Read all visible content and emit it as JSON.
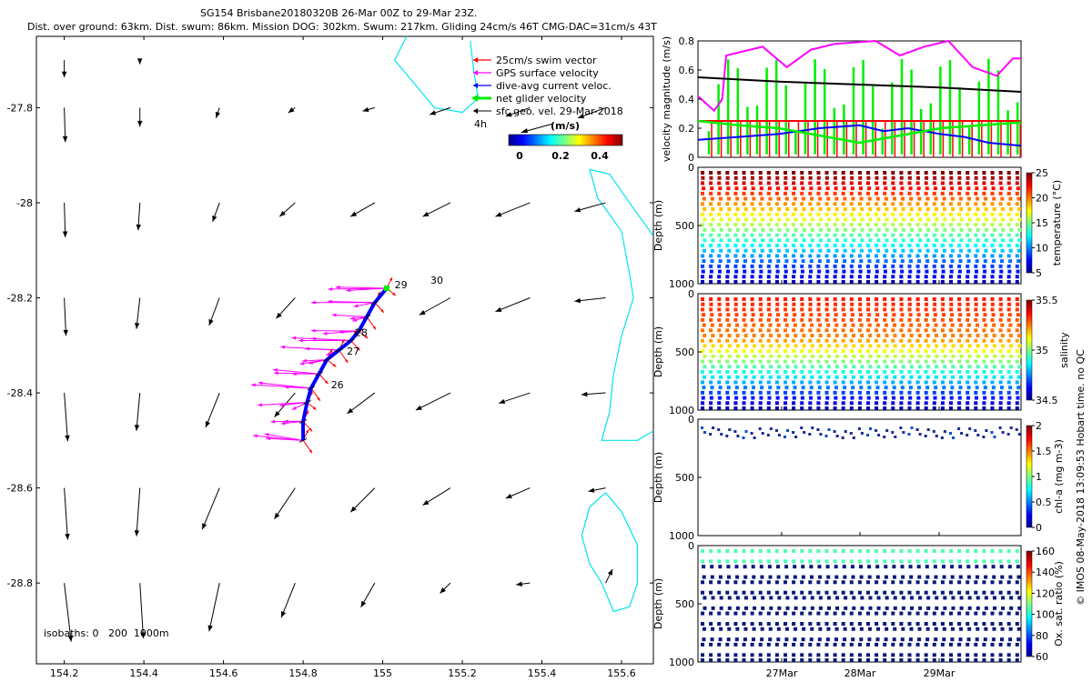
{
  "header": {
    "title": "SG154 Brisbane20180320B 26-Mar 00Z to 29-Mar 23Z.",
    "subtitle": "Dist. over ground: 63km. Dist. swum: 86km. Mission DOG: 302km. Swum: 217km. Gliding 24cm/s 46T CMG-DAC=31cm/s 43T"
  },
  "credit": "© IMOS 08-May-2018 13:09:53 Hobart time. no QC",
  "colors": {
    "swim": "#ff0000",
    "gps": "#ff00ff",
    "dac": "#0000ff",
    "net": "#00ee00",
    "geo": "#000000",
    "coast": "#00e5ee"
  },
  "chart_data": [
    {
      "type": "map",
      "xlim": [
        154.13,
        155.68
      ],
      "ylim": [
        -28.97,
        -27.65
      ],
      "xticks": [
        154.2,
        154.4,
        154.6,
        154.8,
        155,
        155.2,
        155.4,
        155.6
      ],
      "xtick_labels": [
        "154.2",
        "154.4",
        "154.6",
        "154.8",
        "155",
        "155.2",
        "155.4",
        "155.6"
      ],
      "yticks": [
        -27.8,
        -28,
        -28.2,
        -28.4,
        -28.6,
        -28.8
      ],
      "ytick_labels": [
        "-27.8",
        "-28",
        "-28.2",
        "-28.4",
        "-28.6",
        "-28.8"
      ],
      "legend": {
        "position": "top-right",
        "entries": [
          "25cm/s swim vector",
          "GPS surface velocity",
          "dive-avg current veloc.",
          "net glider velocity",
          "sfc geo. vel. 29-Mar-2018"
        ],
        "scale_label": "4h",
        "colorbar_title": "(m/s)",
        "colorbar_ticks": [
          0,
          0.2,
          0.4
        ],
        "colorbar_tick_labels": [
          "0",
          "0.2",
          "0.4"
        ]
      },
      "isobaths_label": "isobaths: 0   200  1000m",
      "track_labels": [
        {
          "text": "30",
          "lon": 155.12,
          "lat": -28.17
        },
        {
          "text": "29",
          "lon": 155.03,
          "lat": -28.18
        },
        {
          "text": "28",
          "lon": 154.93,
          "lat": -28.28
        },
        {
          "text": "27",
          "lon": 154.91,
          "lat": -28.32
        },
        {
          "text": "26",
          "lon": 154.87,
          "lat": -28.39
        }
      ],
      "geo_vectors": [
        {
          "lon": 154.2,
          "lat": -27.7,
          "u": 0.0,
          "v": -0.5
        },
        {
          "lon": 154.39,
          "lat": -27.7,
          "u": 0.0,
          "v": -0.12
        },
        {
          "lon": 154.2,
          "lat": -27.8,
          "u": 0.03,
          "v": -1.0
        },
        {
          "lon": 154.39,
          "lat": -27.8,
          "u": 0.0,
          "v": -0.55
        },
        {
          "lon": 154.59,
          "lat": -27.8,
          "u": -0.1,
          "v": -0.3
        },
        {
          "lon": 154.78,
          "lat": -27.8,
          "u": -0.2,
          "v": -0.15
        },
        {
          "lon": 154.98,
          "lat": -27.8,
          "u": -0.35,
          "v": -0.1
        },
        {
          "lon": 155.17,
          "lat": -27.8,
          "u": -0.6,
          "v": -0.2
        },
        {
          "lon": 155.37,
          "lat": -27.8,
          "u": -0.7,
          "v": -0.25
        },
        {
          "lon": 155.56,
          "lat": -27.8,
          "u": -0.8,
          "v": -0.3
        },
        {
          "lon": 154.2,
          "lat": -28.0,
          "u": 0.03,
          "v": -1.0
        },
        {
          "lon": 154.39,
          "lat": -28.0,
          "u": -0.05,
          "v": -0.8
        },
        {
          "lon": 154.59,
          "lat": -28.0,
          "u": -0.2,
          "v": -0.55
        },
        {
          "lon": 154.78,
          "lat": -28.0,
          "u": -0.45,
          "v": -0.4
        },
        {
          "lon": 154.98,
          "lat": -28.0,
          "u": -0.7,
          "v": -0.4
        },
        {
          "lon": 155.17,
          "lat": -28.0,
          "u": -0.8,
          "v": -0.4
        },
        {
          "lon": 155.37,
          "lat": -28.0,
          "u": -1.0,
          "v": -0.4
        },
        {
          "lon": 155.56,
          "lat": -28.0,
          "u": -0.9,
          "v": -0.25
        },
        {
          "lon": 154.2,
          "lat": -28.2,
          "u": 0.05,
          "v": -1.1
        },
        {
          "lon": 154.39,
          "lat": -28.2,
          "u": -0.1,
          "v": -0.9
        },
        {
          "lon": 154.59,
          "lat": -28.2,
          "u": -0.3,
          "v": -0.8
        },
        {
          "lon": 154.78,
          "lat": -28.2,
          "u": -0.55,
          "v": -0.6
        },
        {
          "lon": 155.17,
          "lat": -28.2,
          "u": -0.9,
          "v": -0.5
        },
        {
          "lon": 155.37,
          "lat": -28.2,
          "u": -1.0,
          "v": -0.4
        },
        {
          "lon": 155.56,
          "lat": -28.2,
          "u": -0.9,
          "v": -0.1
        },
        {
          "lon": 154.2,
          "lat": -28.4,
          "u": 0.1,
          "v": -1.4
        },
        {
          "lon": 154.39,
          "lat": -28.4,
          "u": -0.1,
          "v": -1.1
        },
        {
          "lon": 154.59,
          "lat": -28.4,
          "u": -0.4,
          "v": -1.0
        },
        {
          "lon": 154.78,
          "lat": -28.4,
          "u": -0.6,
          "v": -0.7
        },
        {
          "lon": 154.98,
          "lat": -28.4,
          "u": -0.8,
          "v": -0.6
        },
        {
          "lon": 155.17,
          "lat": -28.4,
          "u": -1.0,
          "v": -0.5
        },
        {
          "lon": 155.37,
          "lat": -28.4,
          "u": -0.9,
          "v": -0.3
        },
        {
          "lon": 155.56,
          "lat": -28.4,
          "u": -0.7,
          "v": -0.05
        },
        {
          "lon": 154.2,
          "lat": -28.6,
          "u": 0.1,
          "v": -1.5
        },
        {
          "lon": 154.39,
          "lat": -28.6,
          "u": -0.1,
          "v": -1.4
        },
        {
          "lon": 154.59,
          "lat": -28.6,
          "u": -0.5,
          "v": -1.2
        },
        {
          "lon": 154.78,
          "lat": -28.6,
          "u": -0.6,
          "v": -0.9
        },
        {
          "lon": 154.98,
          "lat": -28.6,
          "u": -0.7,
          "v": -0.7
        },
        {
          "lon": 155.17,
          "lat": -28.6,
          "u": -0.8,
          "v": -0.5
        },
        {
          "lon": 155.37,
          "lat": -28.6,
          "u": -0.7,
          "v": -0.3
        },
        {
          "lon": 155.56,
          "lat": -28.6,
          "u": -0.5,
          "v": -0.1
        },
        {
          "lon": 154.2,
          "lat": -28.8,
          "u": 0.2,
          "v": -1.7
        },
        {
          "lon": 154.39,
          "lat": -28.8,
          "u": 0.1,
          "v": -1.6
        },
        {
          "lon": 154.59,
          "lat": -28.8,
          "u": -0.3,
          "v": -1.4
        },
        {
          "lon": 154.78,
          "lat": -28.8,
          "u": -0.4,
          "v": -1.0
        },
        {
          "lon": 154.98,
          "lat": -28.8,
          "u": -0.4,
          "v": -0.7
        },
        {
          "lon": 155.17,
          "lat": -28.8,
          "u": -0.3,
          "v": -0.3
        },
        {
          "lon": 155.37,
          "lat": -28.8,
          "u": -0.4,
          "v": -0.05
        },
        {
          "lon": 155.56,
          "lat": -28.8,
          "u": 0.2,
          "v": 0.4
        }
      ],
      "track": [
        [
          155.01,
          -28.18
        ],
        [
          154.98,
          -28.21
        ],
        [
          154.96,
          -28.24
        ],
        [
          154.94,
          -28.27
        ],
        [
          154.92,
          -28.29
        ],
        [
          154.89,
          -28.31
        ],
        [
          154.86,
          -28.33
        ],
        [
          154.84,
          -28.36
        ],
        [
          154.82,
          -28.39
        ],
        [
          154.81,
          -28.42
        ],
        [
          154.8,
          -28.46
        ],
        [
          154.8,
          -28.5
        ]
      ],
      "coastlines": [
        [
          [
            155.06,
            -27.65
          ],
          [
            155.03,
            -27.7
          ],
          [
            155.08,
            -27.75
          ],
          [
            155.13,
            -27.8
          ],
          [
            155.2,
            -27.81
          ],
          [
            155.24,
            -27.78
          ],
          [
            155.23,
            -27.73
          ],
          [
            155.22,
            -27.66
          ]
        ],
        [
          [
            155.68,
            -28.07
          ],
          [
            155.62,
            -28.0
          ],
          [
            155.57,
            -27.94
          ],
          [
            155.52,
            -27.93
          ],
          [
            155.54,
            -27.99
          ],
          [
            155.6,
            -28.06
          ],
          [
            155.62,
            -28.15
          ],
          [
            155.63,
            -28.2
          ],
          [
            155.6,
            -28.28
          ],
          [
            155.58,
            -28.36
          ],
          [
            155.57,
            -28.44
          ],
          [
            155.55,
            -28.5
          ],
          [
            155.64,
            -28.5
          ],
          [
            155.68,
            -28.48
          ]
        ],
        [
          [
            155.56,
            -28.61
          ],
          [
            155.52,
            -28.64
          ],
          [
            155.5,
            -28.7
          ],
          [
            155.52,
            -28.76
          ],
          [
            155.55,
            -28.8
          ],
          [
            155.58,
            -28.86
          ],
          [
            155.62,
            -28.85
          ],
          [
            155.64,
            -28.8
          ],
          [
            155.64,
            -28.72
          ],
          [
            155.6,
            -28.65
          ],
          [
            155.56,
            -28.61
          ]
        ]
      ]
    },
    {
      "type": "line",
      "ylabel": "velocity magnitude (m/s)",
      "xlim": [
        26.0,
        30.0
      ],
      "ylim": [
        0,
        0.8
      ],
      "yticks": [
        0,
        0.2,
        0.4,
        0.6,
        0.8
      ],
      "ytick_labels": [
        "0",
        "0.2",
        "0.4",
        "0.6",
        "0.8"
      ],
      "series": [
        {
          "color": "#ff00ff",
          "x": [
            26.0,
            26.2,
            26.3,
            26.35,
            26.8,
            27.1,
            27.4,
            27.7,
            28.2,
            28.5,
            28.8,
            29.1,
            29.4,
            29.7,
            29.9,
            30.0
          ],
          "y": [
            0.42,
            0.32,
            0.4,
            0.7,
            0.76,
            0.62,
            0.74,
            0.78,
            0.8,
            0.7,
            0.76,
            0.8,
            0.62,
            0.56,
            0.68,
            0.68
          ]
        },
        {
          "color": "#000000",
          "x": [
            26.0,
            27.0,
            28.0,
            29.0,
            30.0
          ],
          "y": [
            0.55,
            0.52,
            0.5,
            0.48,
            0.45
          ]
        },
        {
          "color": "#ff0000",
          "x": [
            26.0,
            30.0
          ],
          "y": [
            0.25,
            0.25
          ]
        },
        {
          "color": "#0000ff",
          "x": [
            26.0,
            26.5,
            27.0,
            27.5,
            28.0,
            28.3,
            28.6,
            29.0,
            29.3,
            29.6,
            30.0
          ],
          "y": [
            0.12,
            0.14,
            0.16,
            0.2,
            0.22,
            0.18,
            0.2,
            0.16,
            0.14,
            0.1,
            0.08
          ]
        },
        {
          "color": "#00ee00",
          "x": [
            26.0,
            26.5,
            27.0,
            27.5,
            28.0,
            28.5,
            29.0,
            29.5,
            30.0
          ],
          "y": [
            0.25,
            0.22,
            0.2,
            0.15,
            0.1,
            0.15,
            0.2,
            0.22,
            0.24
          ]
        }
      ]
    },
    {
      "type": "scatter",
      "ylabel": "Depth (m)",
      "ylim": [
        0,
        1000
      ],
      "yticks": [
        0,
        500,
        1000
      ],
      "colorbar": {
        "label": "temperature (°C)",
        "ticks": [
          "25",
          "20",
          "15",
          "10",
          "5"
        ]
      }
    },
    {
      "type": "scatter",
      "ylabel": "Depth (m)",
      "ylim": [
        0,
        1000
      ],
      "yticks": [
        0,
        500,
        1000
      ],
      "colorbar": {
        "label": "salinity",
        "ticks": [
          "35.5",
          "35",
          "34.5"
        ]
      }
    },
    {
      "type": "scatter",
      "ylabel": "Depth (m)",
      "ylim": [
        0,
        1000
      ],
      "yticks": [
        0,
        500,
        1000
      ],
      "colorbar": {
        "label": "chl-a (mg m-3)",
        "ticks": [
          "2",
          "1.5",
          "1",
          "0.5",
          "0"
        ]
      }
    },
    {
      "type": "scatter",
      "ylabel": "Depth (m)",
      "ylim": [
        0,
        1000
      ],
      "yticks": [
        0,
        500,
        1000
      ],
      "colorbar": {
        "label": "Ox. sat. ratio (%)",
        "ticks": [
          "160",
          "140",
          "120",
          "100",
          "80",
          "60"
        ]
      },
      "xtick_labels": [
        "27Mar",
        "28Mar",
        "29Mar"
      ]
    }
  ]
}
